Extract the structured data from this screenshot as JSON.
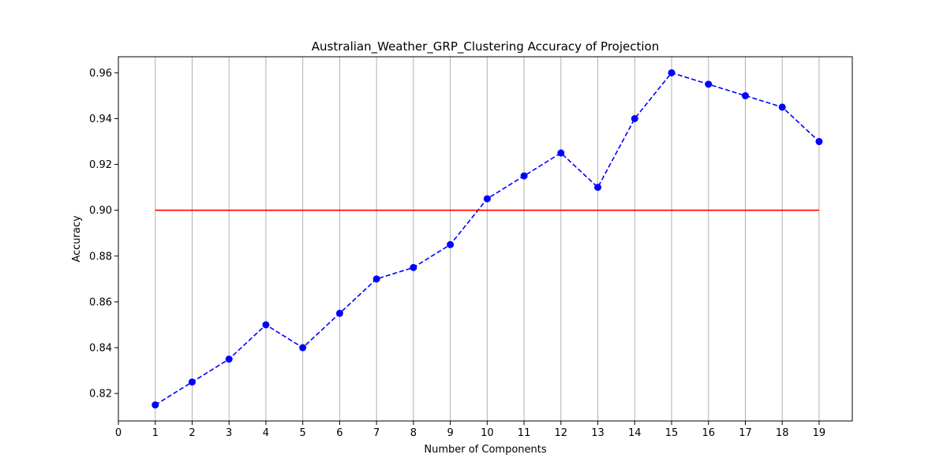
{
  "chart_data": {
    "type": "line",
    "title": "Australian_Weather_GRP_Clustering Accuracy of Projection",
    "xlabel": "Number of Components",
    "ylabel": "Accuracy",
    "xlim": [
      0,
      19.9
    ],
    "ylim": [
      0.808,
      0.967
    ],
    "xticks": [
      0,
      1,
      2,
      3,
      4,
      5,
      6,
      7,
      8,
      9,
      10,
      11,
      12,
      13,
      14,
      15,
      16,
      17,
      18,
      19
    ],
    "yticks": [
      0.82,
      0.84,
      0.86,
      0.88,
      0.9,
      0.92,
      0.94,
      0.96
    ],
    "ytick_labels": [
      "0.82",
      "0.84",
      "0.86",
      "0.88",
      "0.90",
      "0.92",
      "0.94",
      "0.96"
    ],
    "grid": "vertical",
    "series": [
      {
        "style": "dashed-markers",
        "color": "#0000ff",
        "x": [
          1,
          2,
          3,
          4,
          5,
          6,
          7,
          8,
          9,
          10,
          11,
          12,
          13,
          14,
          15,
          16,
          17,
          18,
          19
        ],
        "y": [
          0.815,
          0.825,
          0.835,
          0.85,
          0.84,
          0.855,
          0.87,
          0.875,
          0.885,
          0.905,
          0.915,
          0.925,
          0.91,
          0.94,
          0.96,
          0.955,
          0.95,
          0.945,
          0.93
        ]
      },
      {
        "style": "solid",
        "color": "#ff0000",
        "x": [
          1,
          19
        ],
        "y": [
          0.9,
          0.9
        ]
      }
    ]
  }
}
